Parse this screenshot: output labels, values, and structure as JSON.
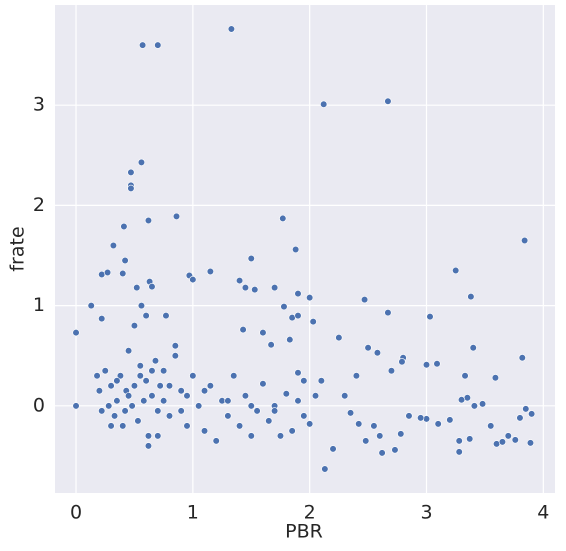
{
  "chart_data": {
    "type": "scatter",
    "x_label": "PBR",
    "y_label": "frate",
    "xlim": [
      -0.18,
      4.1
    ],
    "ylim": [
      -0.87,
      4.0
    ],
    "xticks": [
      0,
      1,
      2,
      3,
      4
    ],
    "yticks": [
      0,
      1,
      2,
      3
    ],
    "grid": true,
    "series": [
      {
        "color": "#4c72b0",
        "x": [
          0,
          0,
          0.57,
          0.7,
          1.33,
          2.12,
          2.67,
          0.47,
          0.47,
          0.47,
          0.56,
          0.62,
          0.86,
          1.77,
          0.41,
          0.32,
          0.42,
          1.5,
          1.88,
          3.25,
          3.84,
          3.38,
          0.22,
          0.27,
          0.4,
          0.52,
          0.63,
          0.65,
          0.97,
          1.0,
          1.15,
          1.4,
          1.45,
          1.53,
          1.7,
          0.13,
          0.22,
          1.9,
          2.0,
          1.78,
          2.47,
          2.67,
          3.03,
          1.85,
          1.9,
          2.03,
          2.25,
          1.6,
          1.43,
          1.67,
          1.83,
          2.5,
          2.58,
          2.8,
          2.79,
          3.09,
          3.0,
          3.4,
          3.59,
          3.82,
          3.33,
          3.89,
          3.8,
          3.85,
          3.9,
          3.76,
          3.6,
          3.65,
          3.7,
          3.55,
          3.48,
          3.41,
          3.37,
          3.28,
          3.28,
          3.2,
          3.35,
          3.3,
          3.1,
          3.0,
          2.95,
          2.85,
          2.78,
          2.73,
          2.62,
          2.6,
          2.55,
          2.48,
          2.42,
          2.35,
          2.3,
          2.2,
          2.13,
          2.1,
          2.05,
          2.0,
          1.95,
          1.9,
          1.85,
          1.8,
          1.75,
          1.7,
          1.65,
          1.6,
          1.55,
          1.5,
          1.45,
          1.4,
          1.35,
          1.3,
          1.25,
          1.2,
          1.15,
          1.1,
          1.05,
          1.0,
          0.95,
          0.9,
          0.85,
          0.8,
          0.77,
          0.75,
          0.72,
          0.7,
          0.68,
          0.65,
          0.62,
          0.6,
          0.58,
          0.55,
          0.53,
          0.5,
          0.48,
          0.45,
          0.43,
          0.4,
          0.38,
          0.35,
          0.33,
          0.3,
          0.28,
          0.25,
          0.22,
          0.2,
          0.18,
          0.5,
          0.56,
          0.6,
          0.85,
          0.9,
          0.45,
          0.55,
          0.65,
          0.75,
          0.35,
          0.42,
          0.3,
          0.62,
          0.7,
          0.8,
          0.95,
          1.1,
          1.3,
          1.5,
          1.7,
          2.4,
          2.7,
          1.9,
          1.95
        ],
        "values": [
          0.73,
          0,
          3.6,
          3.6,
          3.76,
          3.01,
          3.04,
          2.33,
          2.2,
          2.17,
          2.43,
          1.85,
          1.89,
          1.87,
          1.79,
          1.6,
          1.45,
          1.47,
          1.56,
          1.35,
          1.65,
          1.09,
          1.31,
          1.33,
          1.32,
          1.18,
          1.24,
          1.19,
          1.3,
          1.26,
          1.34,
          1.25,
          1.18,
          1.16,
          1.18,
          1.0,
          0.87,
          1.12,
          1.08,
          0.99,
          1.06,
          0.93,
          0.89,
          0.88,
          0.9,
          0.84,
          0.68,
          0.73,
          0.76,
          0.61,
          0.66,
          0.58,
          0.53,
          0.48,
          0.44,
          0.42,
          0.41,
          0.58,
          0.28,
          0.48,
          0.3,
          -0.37,
          -0.12,
          -0.03,
          -0.08,
          -0.34,
          -0.38,
          -0.36,
          -0.3,
          -0.2,
          0.02,
          0,
          -0.33,
          -0.46,
          -0.35,
          -0.14,
          0.08,
          0.06,
          -0.18,
          -0.13,
          -0.12,
          -0.1,
          -0.28,
          -0.44,
          -0.47,
          -0.3,
          -0.2,
          -0.35,
          -0.18,
          -0.07,
          0.1,
          -0.43,
          -0.63,
          0.25,
          0.1,
          -0.18,
          -0.1,
          0.05,
          -0.25,
          0.12,
          -0.3,
          0,
          -0.15,
          0.22,
          -0.05,
          -0.3,
          0.1,
          -0.2,
          0.3,
          -0.1,
          0.05,
          -0.35,
          0.2,
          -0.25,
          0,
          0.3,
          -0.2,
          0.15,
          0.6,
          -0.1,
          0.9,
          0.35,
          0.2,
          -0.05,
          0.45,
          0.1,
          -0.3,
          0.25,
          0.05,
          0.4,
          -0.15,
          0.2,
          0,
          0.55,
          0.15,
          -0.2,
          0.3,
          0.05,
          -0.1,
          0.2,
          0,
          0.35,
          -0.05,
          0.15,
          0.3,
          0.8,
          1.0,
          0.9,
          0.5,
          -0.05,
          0.1,
          0.3,
          0.35,
          0.05,
          0.25,
          -0.05,
          -0.2,
          -0.4,
          -0.3,
          0.2,
          0.1,
          0.15,
          0.05,
          0,
          -0.05,
          0.3,
          0.35,
          0.33,
          0.25
        ]
      }
    ]
  }
}
